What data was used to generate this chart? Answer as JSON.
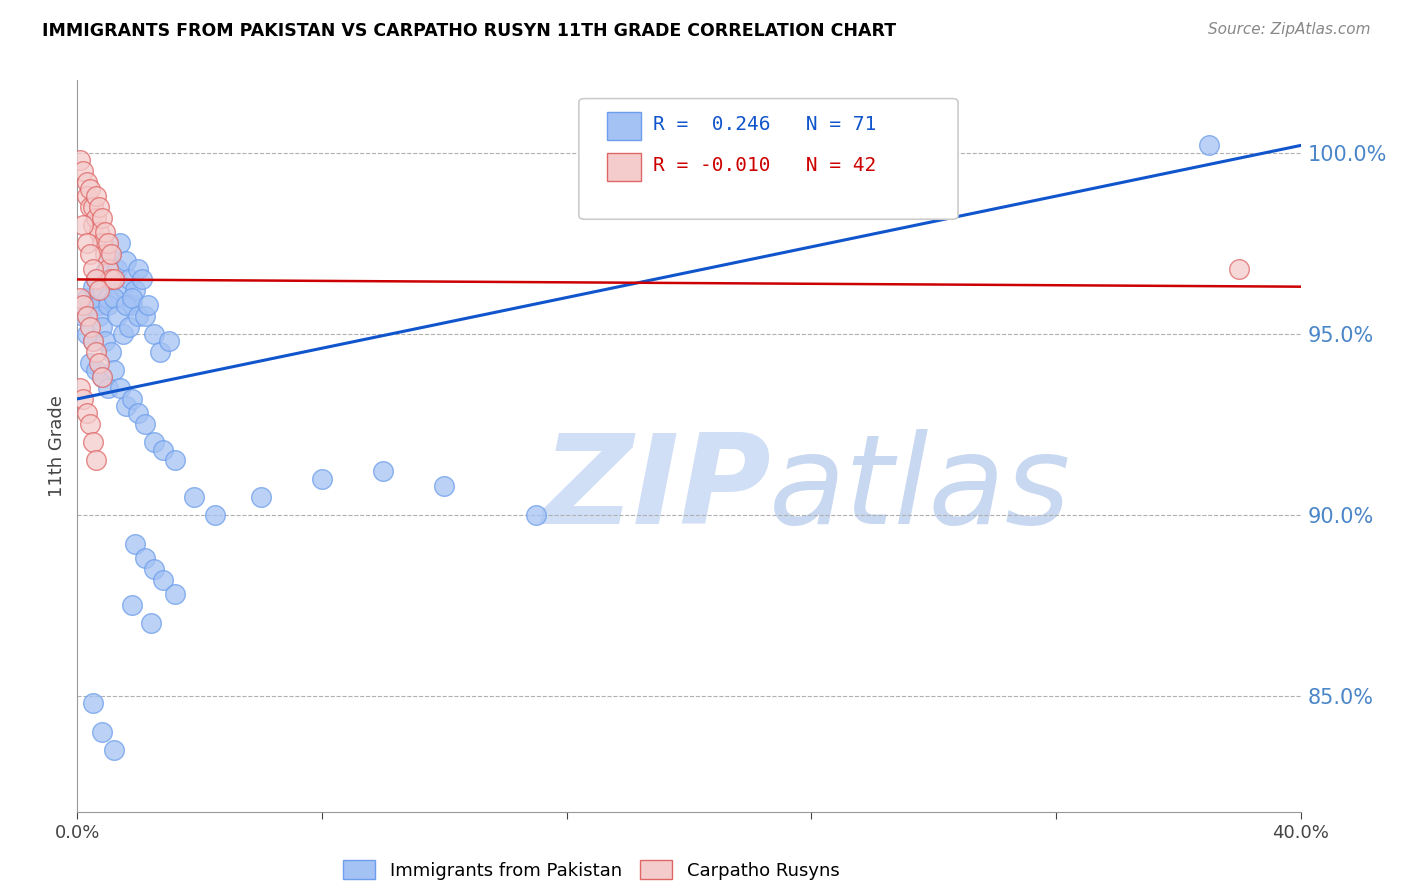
{
  "title": "IMMIGRANTS FROM PAKISTAN VS CARPATHO RUSYN 11TH GRADE CORRELATION CHART",
  "source": "Source: ZipAtlas.com",
  "ylabel": "11th Grade",
  "blue_R": 0.246,
  "blue_N": 71,
  "pink_R": -0.01,
  "pink_N": 42,
  "blue_label": "Immigrants from Pakistan",
  "pink_label": "Carpatho Rusyns",
  "xmin": 0.0,
  "xmax": 0.4,
  "ymin": 0.818,
  "ymax": 1.02,
  "yticks": [
    0.85,
    0.9,
    0.95,
    1.0
  ],
  "ytick_labels": [
    "85.0%",
    "90.0%",
    "95.0%",
    "100.0%"
  ],
  "xticks": [
    0.0,
    0.08,
    0.16,
    0.24,
    0.32,
    0.4
  ],
  "xtick_labels": [
    "0.0%",
    "",
    "",
    "",
    "",
    "40.0%"
  ],
  "blue_color": "#a4c2f4",
  "pink_color": "#f4cccc",
  "blue_edge_color": "#6d9eeb",
  "pink_edge_color": "#e06666",
  "blue_line_color": "#1155cc",
  "pink_line_color": "#cc0000",
  "grid_color": "#b0b0b0",
  "title_color": "#000000",
  "axis_label_color": "#4a86c8",
  "watermark_zip_color": "#d0dff5",
  "watermark_atlas_color": "#c8d8f0",
  "blue_scatter_x": [
    0.002,
    0.003,
    0.004,
    0.005,
    0.006,
    0.007,
    0.008,
    0.009,
    0.01,
    0.01,
    0.011,
    0.012,
    0.013,
    0.014,
    0.015,
    0.016,
    0.017,
    0.018,
    0.019,
    0.02,
    0.003,
    0.005,
    0.007,
    0.008,
    0.009,
    0.01,
    0.011,
    0.012,
    0.013,
    0.015,
    0.016,
    0.017,
    0.018,
    0.02,
    0.021,
    0.022,
    0.023,
    0.025,
    0.027,
    0.03,
    0.004,
    0.006,
    0.008,
    0.01,
    0.012,
    0.014,
    0.016,
    0.018,
    0.02,
    0.022,
    0.025,
    0.028,
    0.032,
    0.038,
    0.045,
    0.06,
    0.08,
    0.1,
    0.12,
    0.15,
    0.019,
    0.022,
    0.025,
    0.028,
    0.032,
    0.018,
    0.024,
    0.005,
    0.008,
    0.012,
    0.37
  ],
  "blue_scatter_y": [
    0.955,
    0.96,
    0.958,
    0.963,
    0.965,
    0.958,
    0.962,
    0.967,
    0.97,
    0.96,
    0.972,
    0.965,
    0.968,
    0.975,
    0.963,
    0.97,
    0.965,
    0.958,
    0.962,
    0.968,
    0.95,
    0.948,
    0.955,
    0.952,
    0.948,
    0.958,
    0.945,
    0.96,
    0.955,
    0.95,
    0.958,
    0.952,
    0.96,
    0.955,
    0.965,
    0.955,
    0.958,
    0.95,
    0.945,
    0.948,
    0.942,
    0.94,
    0.938,
    0.935,
    0.94,
    0.935,
    0.93,
    0.932,
    0.928,
    0.925,
    0.92,
    0.918,
    0.915,
    0.905,
    0.9,
    0.905,
    0.91,
    0.912,
    0.908,
    0.9,
    0.892,
    0.888,
    0.885,
    0.882,
    0.878,
    0.875,
    0.87,
    0.848,
    0.84,
    0.835,
    1.002
  ],
  "pink_scatter_x": [
    0.001,
    0.002,
    0.003,
    0.003,
    0.004,
    0.004,
    0.005,
    0.005,
    0.006,
    0.006,
    0.007,
    0.007,
    0.008,
    0.008,
    0.009,
    0.009,
    0.01,
    0.01,
    0.011,
    0.011,
    0.002,
    0.003,
    0.004,
    0.005,
    0.006,
    0.007,
    0.001,
    0.002,
    0.003,
    0.004,
    0.005,
    0.006,
    0.007,
    0.008,
    0.001,
    0.002,
    0.003,
    0.004,
    0.005,
    0.006,
    0.012,
    0.38
  ],
  "pink_scatter_y": [
    0.998,
    0.995,
    0.992,
    0.988,
    0.985,
    0.99,
    0.985,
    0.98,
    0.988,
    0.982,
    0.978,
    0.985,
    0.975,
    0.982,
    0.978,
    0.972,
    0.975,
    0.968,
    0.972,
    0.965,
    0.98,
    0.975,
    0.972,
    0.968,
    0.965,
    0.962,
    0.96,
    0.958,
    0.955,
    0.952,
    0.948,
    0.945,
    0.942,
    0.938,
    0.935,
    0.932,
    0.928,
    0.925,
    0.92,
    0.915,
    0.965,
    0.968
  ],
  "blue_trend_x": [
    0.0,
    0.4
  ],
  "blue_trend_y": [
    0.932,
    1.002
  ],
  "pink_trend_x": [
    0.0,
    0.4
  ],
  "pink_trend_y": [
    0.965,
    0.963
  ]
}
